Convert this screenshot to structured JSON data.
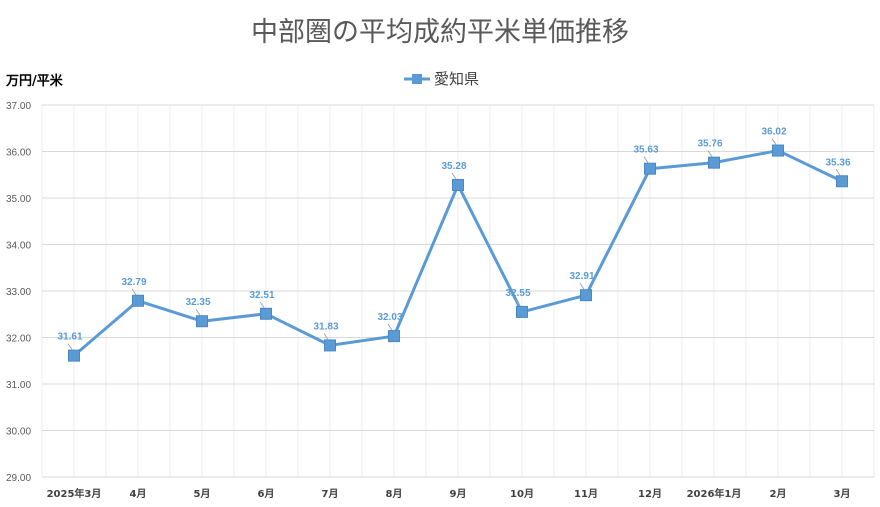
{
  "chart_data": {
    "type": "line",
    "title": "中部圏の平均成約平米単価推移",
    "ylabel": "万円/平米",
    "xlabel": "",
    "categories": [
      "2025年3月",
      "4月",
      "5月",
      "6月",
      "7月",
      "8月",
      "9月",
      "10月",
      "11月",
      "12月",
      "2026年1月",
      "2月",
      "3月"
    ],
    "series": [
      {
        "name": "愛知県",
        "values": [
          31.61,
          32.79,
          32.35,
          32.51,
          31.83,
          32.03,
          35.28,
          32.55,
          32.91,
          35.63,
          35.76,
          36.02,
          35.36
        ],
        "color": "#5B9BD5",
        "marker": "square"
      }
    ],
    "ylim": [
      29,
      37
    ],
    "yticks": [
      "29.00",
      "30.00",
      "31.00",
      "32.00",
      "33.00",
      "34.00",
      "35.00",
      "36.00",
      "37.00"
    ],
    "grid": true,
    "legend": "top-center",
    "data_labels": true
  }
}
